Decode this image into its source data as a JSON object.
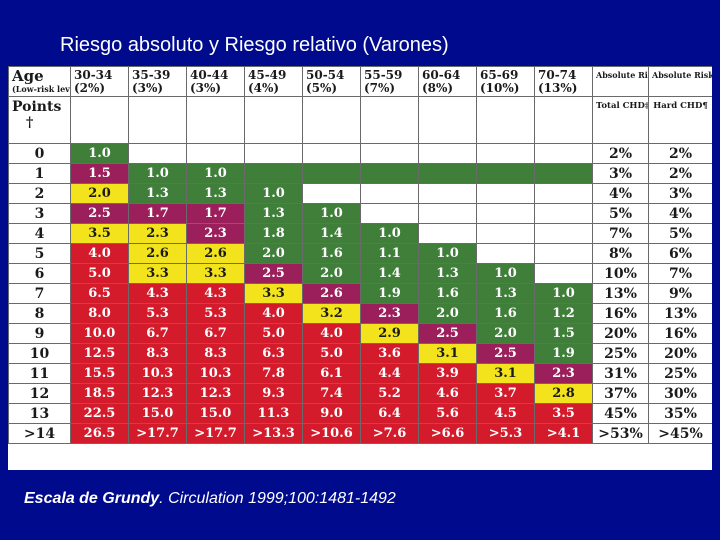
{
  "title": "Riesgo absoluto y Riesgo relativo (Varones)",
  "citation": {
    "bold": "Escala de Grundy",
    "rest": ". Circulation 1999;100:1481-1492"
  },
  "table": {
    "age_label": "Age",
    "age_note": "(Low-risk level)*",
    "points_label": "Points",
    "points_mark": "†",
    "age_groups": [
      "30-34",
      "35-39",
      "40-44",
      "45-49",
      "50-54",
      "55-59",
      "60-64",
      "65-69",
      "70-74"
    ],
    "low_risk": [
      "(2%)",
      "(3%)",
      "(3%)",
      "(4%)",
      "(5%)",
      "(7%)",
      "(8%)",
      "(10%)",
      "(13%)"
    ],
    "abs_total_header": "Absolute Risk",
    "abs_total_sub": "Total CHD‡",
    "abs_hard_header": "Absolute Risk‡",
    "abs_hard_sub": "Hard CHD¶",
    "rows": [
      {
        "points": "0",
        "cells": [
          [
            "1.0",
            "g"
          ],
          [
            "",
            "w"
          ],
          [
            "",
            "w"
          ],
          [
            "",
            "w"
          ],
          [
            "",
            "w"
          ],
          [
            "",
            "w"
          ],
          [
            "",
            "w"
          ],
          [
            "",
            "w"
          ],
          [
            "",
            "w"
          ]
        ],
        "total": "2%",
        "hard": "2%"
      },
      {
        "points": "1",
        "cells": [
          [
            "1.5",
            "m"
          ],
          [
            "1.0",
            "g"
          ],
          [
            "1.0",
            "g"
          ],
          [
            "",
            "g"
          ],
          [
            "",
            "g"
          ],
          [
            "",
            "g"
          ],
          [
            "",
            "g"
          ],
          [
            "",
            "g"
          ],
          [
            "",
            "g"
          ]
        ],
        "total": "3%",
        "hard": "2%"
      },
      {
        "points": "2",
        "cells": [
          [
            "2.0",
            "y"
          ],
          [
            "1.3",
            "g"
          ],
          [
            "1.3",
            "g"
          ],
          [
            "1.0",
            "g"
          ],
          [
            "",
            "w"
          ],
          [
            "",
            "w"
          ],
          [
            "",
            "w"
          ],
          [
            "",
            "w"
          ],
          [
            "",
            "w"
          ]
        ],
        "total": "4%",
        "hard": "3%"
      },
      {
        "points": "3",
        "cells": [
          [
            "2.5",
            "m"
          ],
          [
            "1.7",
            "m"
          ],
          [
            "1.7",
            "m"
          ],
          [
            "1.3",
            "g"
          ],
          [
            "1.0",
            "g"
          ],
          [
            "",
            "w"
          ],
          [
            "",
            "w"
          ],
          [
            "",
            "w"
          ],
          [
            "",
            "w"
          ]
        ],
        "total": "5%",
        "hard": "4%"
      },
      {
        "points": "4",
        "cells": [
          [
            "3.5",
            "y"
          ],
          [
            "2.3",
            "y"
          ],
          [
            "2.3",
            "m"
          ],
          [
            "1.8",
            "g"
          ],
          [
            "1.4",
            "g"
          ],
          [
            "1.0",
            "g"
          ],
          [
            "",
            "w"
          ],
          [
            "",
            "w"
          ],
          [
            "",
            "w"
          ]
        ],
        "total": "7%",
        "hard": "5%"
      },
      {
        "points": "5",
        "cells": [
          [
            "4.0",
            "r"
          ],
          [
            "2.6",
            "y"
          ],
          [
            "2.6",
            "y"
          ],
          [
            "2.0",
            "g"
          ],
          [
            "1.6",
            "g"
          ],
          [
            "1.1",
            "g"
          ],
          [
            "1.0",
            "g"
          ],
          [
            "",
            "w"
          ],
          [
            "",
            "w"
          ]
        ],
        "total": "8%",
        "hard": "6%"
      },
      {
        "points": "6",
        "cells": [
          [
            "5.0",
            "r"
          ],
          [
            "3.3",
            "y"
          ],
          [
            "3.3",
            "y"
          ],
          [
            "2.5",
            "m"
          ],
          [
            "2.0",
            "g"
          ],
          [
            "1.4",
            "g"
          ],
          [
            "1.3",
            "g"
          ],
          [
            "1.0",
            "g"
          ],
          [
            "",
            "w"
          ]
        ],
        "total": "10%",
        "hard": "7%"
      },
      {
        "points": "7",
        "cells": [
          [
            "6.5",
            "r"
          ],
          [
            "4.3",
            "r"
          ],
          [
            "4.3",
            "r"
          ],
          [
            "3.3",
            "y"
          ],
          [
            "2.6",
            "m"
          ],
          [
            "1.9",
            "g"
          ],
          [
            "1.6",
            "g"
          ],
          [
            "1.3",
            "g"
          ],
          [
            "1.0",
            "g"
          ]
        ],
        "total": "13%",
        "hard": "9%"
      },
      {
        "points": "8",
        "cells": [
          [
            "8.0",
            "r"
          ],
          [
            "5.3",
            "r"
          ],
          [
            "5.3",
            "r"
          ],
          [
            "4.0",
            "r"
          ],
          [
            "3.2",
            "y"
          ],
          [
            "2.3",
            "m"
          ],
          [
            "2.0",
            "g"
          ],
          [
            "1.6",
            "g"
          ],
          [
            "1.2",
            "g"
          ]
        ],
        "total": "16%",
        "hard": "13%"
      },
      {
        "points": "9",
        "cells": [
          [
            "10.0",
            "r"
          ],
          [
            "6.7",
            "r"
          ],
          [
            "6.7",
            "r"
          ],
          [
            "5.0",
            "r"
          ],
          [
            "4.0",
            "r"
          ],
          [
            "2.9",
            "y"
          ],
          [
            "2.5",
            "m"
          ],
          [
            "2.0",
            "g"
          ],
          [
            "1.5",
            "g"
          ]
        ],
        "total": "20%",
        "hard": "16%"
      },
      {
        "points": "10",
        "cells": [
          [
            "12.5",
            "r"
          ],
          [
            "8.3",
            "r"
          ],
          [
            "8.3",
            "r"
          ],
          [
            "6.3",
            "r"
          ],
          [
            "5.0",
            "r"
          ],
          [
            "3.6",
            "r"
          ],
          [
            "3.1",
            "y"
          ],
          [
            "2.5",
            "m"
          ],
          [
            "1.9",
            "g"
          ]
        ],
        "total": "25%",
        "hard": "20%"
      },
      {
        "points": "11",
        "cells": [
          [
            "15.5",
            "r"
          ],
          [
            "10.3",
            "r"
          ],
          [
            "10.3",
            "r"
          ],
          [
            "7.8",
            "r"
          ],
          [
            "6.1",
            "r"
          ],
          [
            "4.4",
            "r"
          ],
          [
            "3.9",
            "r"
          ],
          [
            "3.1",
            "y"
          ],
          [
            "2.3",
            "m"
          ]
        ],
        "total": "31%",
        "hard": "25%"
      },
      {
        "points": "12",
        "cells": [
          [
            "18.5",
            "r"
          ],
          [
            "12.3",
            "r"
          ],
          [
            "12.3",
            "r"
          ],
          [
            "9.3",
            "r"
          ],
          [
            "7.4",
            "r"
          ],
          [
            "5.2",
            "r"
          ],
          [
            "4.6",
            "r"
          ],
          [
            "3.7",
            "r"
          ],
          [
            "2.8",
            "y"
          ]
        ],
        "total": "37%",
        "hard": "30%"
      },
      {
        "points": "13",
        "cells": [
          [
            "22.5",
            "r"
          ],
          [
            "15.0",
            "r"
          ],
          [
            "15.0",
            "r"
          ],
          [
            "11.3",
            "r"
          ],
          [
            "9.0",
            "r"
          ],
          [
            "6.4",
            "r"
          ],
          [
            "5.6",
            "r"
          ],
          [
            "4.5",
            "r"
          ],
          [
            "3.5",
            "r"
          ]
        ],
        "total": "45%",
        "hard": "35%"
      },
      {
        "points": ">14",
        "cells": [
          [
            "26.5",
            "r"
          ],
          [
            ">17.7",
            "r"
          ],
          [
            ">17.7",
            "r"
          ],
          [
            ">13.3",
            "r"
          ],
          [
            ">10.6",
            "r"
          ],
          [
            ">7.6",
            "r"
          ],
          [
            ">6.6",
            "r"
          ],
          [
            ">5.3",
            "r"
          ],
          [
            ">4.1",
            "r"
          ]
        ],
        "total": ">53%",
        "hard": ">45%"
      }
    ]
  },
  "colors": {
    "background": "#000a8c",
    "green": "#3f7f3a",
    "yellow": "#f3e31c",
    "magenta": "#9a1f5b",
    "red": "#d31b2c"
  }
}
